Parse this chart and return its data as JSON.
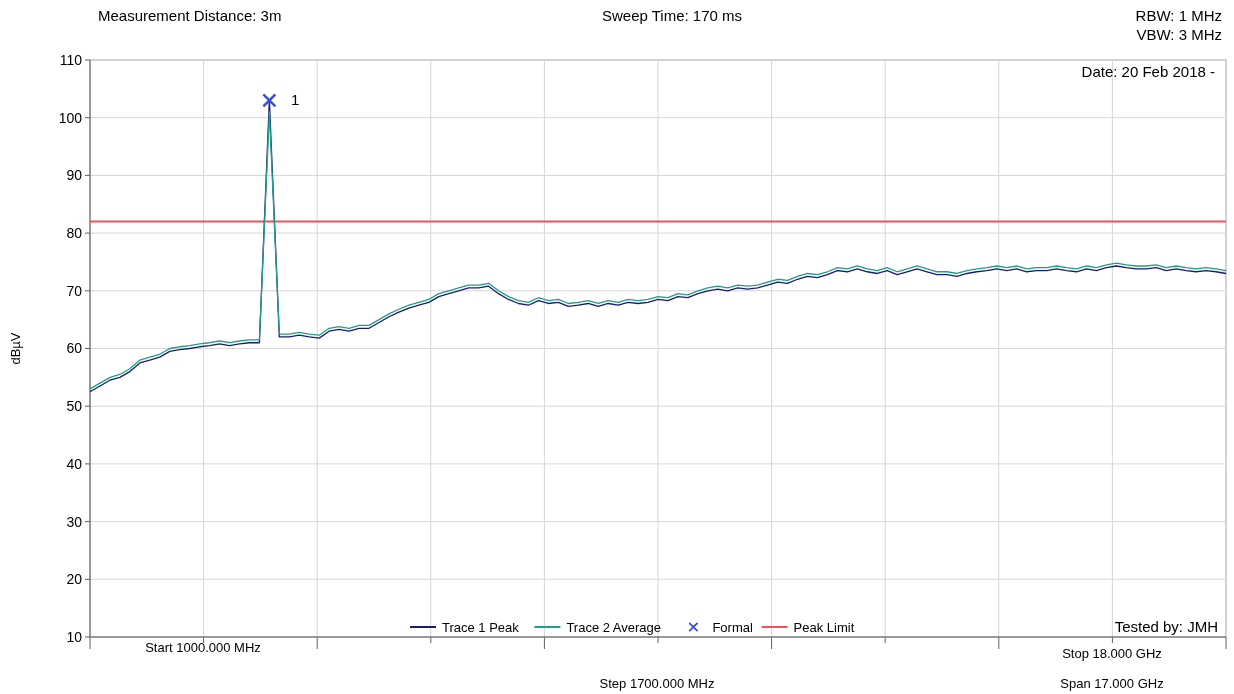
{
  "chart_data": {
    "type": "line",
    "ylabel": "dBµV",
    "ylim": [
      10,
      110
    ],
    "yticks": [
      10,
      20,
      30,
      40,
      50,
      60,
      70,
      80,
      90,
      100,
      110
    ],
    "grid": true,
    "legend": "bottom",
    "categories": [
      null,
      null,
      null,
      null,
      null,
      null,
      null,
      null,
      null,
      null,
      null,
      null,
      null,
      null,
      null,
      null,
      null,
      null,
      null,
      null,
      null,
      null,
      null,
      null,
      null,
      null,
      null,
      null,
      null,
      null,
      null,
      null,
      null,
      null,
      null,
      null,
      null,
      null,
      null,
      null,
      null,
      null,
      null,
      null,
      null,
      null,
      null,
      null,
      null,
      null,
      null,
      null,
      null,
      null,
      null,
      null,
      null,
      null,
      null,
      null,
      null,
      null,
      null,
      null,
      null,
      null,
      null,
      null,
      null,
      null,
      null,
      null,
      null,
      null,
      null,
      null,
      null,
      null,
      null,
      null,
      null,
      null,
      null,
      null,
      null,
      null,
      null,
      null,
      null,
      null,
      null,
      null,
      null,
      null,
      null,
      null,
      null,
      null,
      null,
      null,
      null,
      null,
      null,
      null,
      null,
      null,
      null,
      null,
      null,
      null,
      null,
      null,
      null,
      null,
      null
    ],
    "series": [
      {
        "name": "Trace 1 Peak",
        "color": "#1c1c6e",
        "values": [
          52.5,
          53.5,
          54.5,
          55,
          56,
          57.5,
          58,
          58.5,
          59.5,
          59.8,
          60,
          60.3,
          60.5,
          60.8,
          60.5,
          60.8,
          61,
          61,
          103,
          62,
          62,
          62.3,
          62,
          61.8,
          63,
          63.3,
          63,
          63.5,
          63.5,
          64.5,
          65.5,
          66.3,
          67,
          67.5,
          68,
          69,
          69.5,
          70,
          70.5,
          70.5,
          70.8,
          69.5,
          68.5,
          67.8,
          67.5,
          68.3,
          67.8,
          68,
          67.3,
          67.5,
          67.8,
          67.3,
          67.8,
          67.5,
          68,
          67.8,
          68,
          68.5,
          68.3,
          69,
          68.8,
          69.5,
          70,
          70.3,
          70,
          70.5,
          70.3,
          70.5,
          71,
          71.5,
          71.3,
          72,
          72.5,
          72.3,
          72.8,
          73.5,
          73.3,
          73.8,
          73.3,
          73,
          73.5,
          72.8,
          73.3,
          73.8,
          73.3,
          72.8,
          72.8,
          72.5,
          73,
          73.3,
          73.5,
          73.8,
          73.5,
          73.8,
          73.3,
          73.5,
          73.5,
          73.8,
          73.5,
          73.3,
          73.8,
          73.5,
          74,
          74.3,
          74,
          73.8,
          73.8,
          74,
          73.5,
          73.8,
          73.5,
          73.3,
          73.5,
          73.3,
          73
        ]
      },
      {
        "name": "Trace 2 Average",
        "color": "#1f9e89",
        "values": [
          53,
          54,
          55,
          55.5,
          56.5,
          58,
          58.5,
          59,
          60,
          60.3,
          60.5,
          60.8,
          61,
          61.3,
          61,
          61.3,
          61.5,
          61.5,
          101,
          62.5,
          62.5,
          62.8,
          62.5,
          62.3,
          63.5,
          63.8,
          63.5,
          64,
          64,
          65,
          66,
          66.8,
          67.5,
          68,
          68.5,
          69.5,
          70,
          70.5,
          71,
          71,
          71.3,
          70,
          69,
          68.3,
          68,
          68.8,
          68.3,
          68.5,
          67.8,
          68,
          68.3,
          67.8,
          68.3,
          68,
          68.5,
          68.3,
          68.5,
          69,
          68.8,
          69.5,
          69.3,
          70,
          70.5,
          70.8,
          70.5,
          71,
          70.8,
          71,
          71.5,
          72,
          71.8,
          72.5,
          73,
          72.8,
          73.3,
          74,
          73.8,
          74.3,
          73.8,
          73.5,
          74,
          73.3,
          73.8,
          74.3,
          73.8,
          73.3,
          73.3,
          73,
          73.5,
          73.8,
          74,
          74.3,
          74,
          74.3,
          73.8,
          74,
          74,
          74.3,
          74,
          73.8,
          74.3,
          74,
          74.5,
          74.8,
          74.5,
          74.3,
          74.3,
          74.5,
          74,
          74.3,
          74,
          73.8,
          74,
          73.8,
          73.5
        ]
      },
      {
        "name": "Formal",
        "type": "scatter",
        "marker": "cross",
        "color": "#3a4fd8",
        "values": [
          null,
          null,
          null,
          null,
          null,
          null,
          null,
          null,
          null,
          null,
          null,
          null,
          null,
          null,
          null,
          null,
          null,
          null,
          103,
          null,
          null,
          null,
          null,
          null,
          null,
          null,
          null,
          null,
          null,
          null,
          null,
          null,
          null,
          null,
          null,
          null,
          null,
          null,
          null,
          null,
          null,
          null,
          null,
          null,
          null,
          null,
          null,
          null,
          null,
          null,
          null,
          null,
          null,
          null,
          null,
          null,
          null,
          null,
          null,
          null,
          null,
          null,
          null,
          null,
          null,
          null,
          null,
          null,
          null,
          null,
          null,
          null,
          null,
          null,
          null,
          null,
          null,
          null,
          null,
          null,
          null,
          null,
          null,
          null,
          null,
          null,
          null,
          null,
          null,
          null,
          null,
          null,
          null,
          null,
          null,
          null,
          null,
          null,
          null,
          null,
          null,
          null,
          null,
          null,
          null,
          null,
          null,
          null,
          null,
          null,
          null,
          null,
          null,
          null,
          null
        ]
      }
    ],
    "ref_lines": [
      {
        "axis": "y",
        "value": 82,
        "label": "Peak Limit",
        "color": "#f0505a"
      }
    ],
    "annotations": [
      "1",
      "Measurement Distance: 3m",
      "Sweep Time: 170 ms",
      "RBW: 1 MHz",
      "VBW: 3 MHz",
      "Date: 20 Feb 2018 -",
      "Tested by: JMH",
      "Start 1000.000 MHz",
      "Step 1700.000 MHz",
      "Stop 18.000 GHz",
      "Span 17.000 GHz"
    ]
  }
}
